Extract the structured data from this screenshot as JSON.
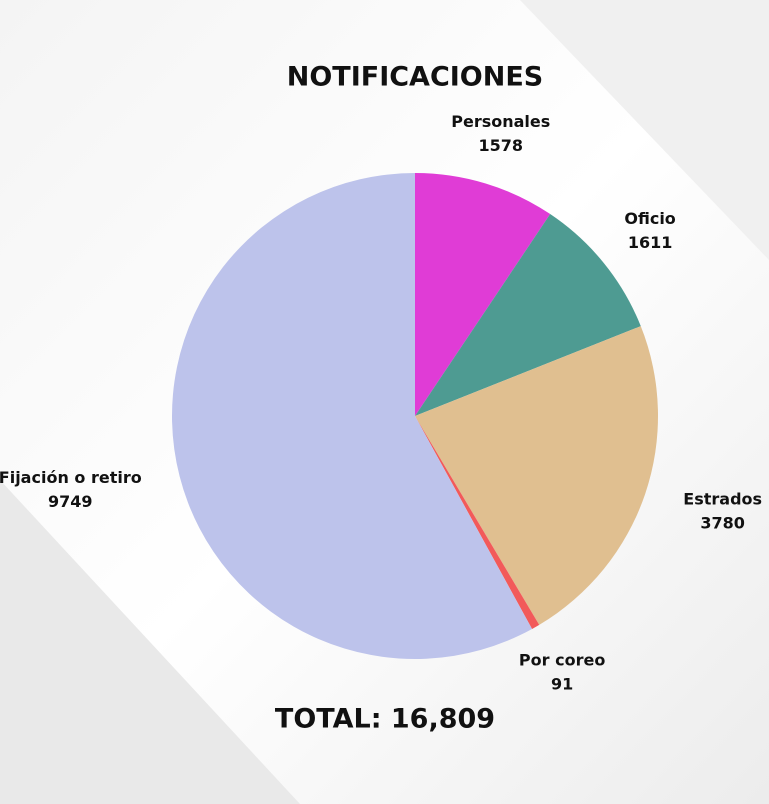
{
  "chart_data": {
    "type": "pie",
    "title": "NOTIFICACIONES",
    "categories": [
      "Personales",
      "Oficio",
      "Estrados",
      "Por coreo",
      "Fijación o retiro"
    ],
    "values": [
      1578,
      1611,
      3780,
      91,
      9749
    ],
    "colors": [
      "#e03cd6",
      "#4e9b92",
      "#e0bf90",
      "#f25a5a",
      "#bdc3eb"
    ],
    "annotation": "TOTAL: 16,809"
  }
}
